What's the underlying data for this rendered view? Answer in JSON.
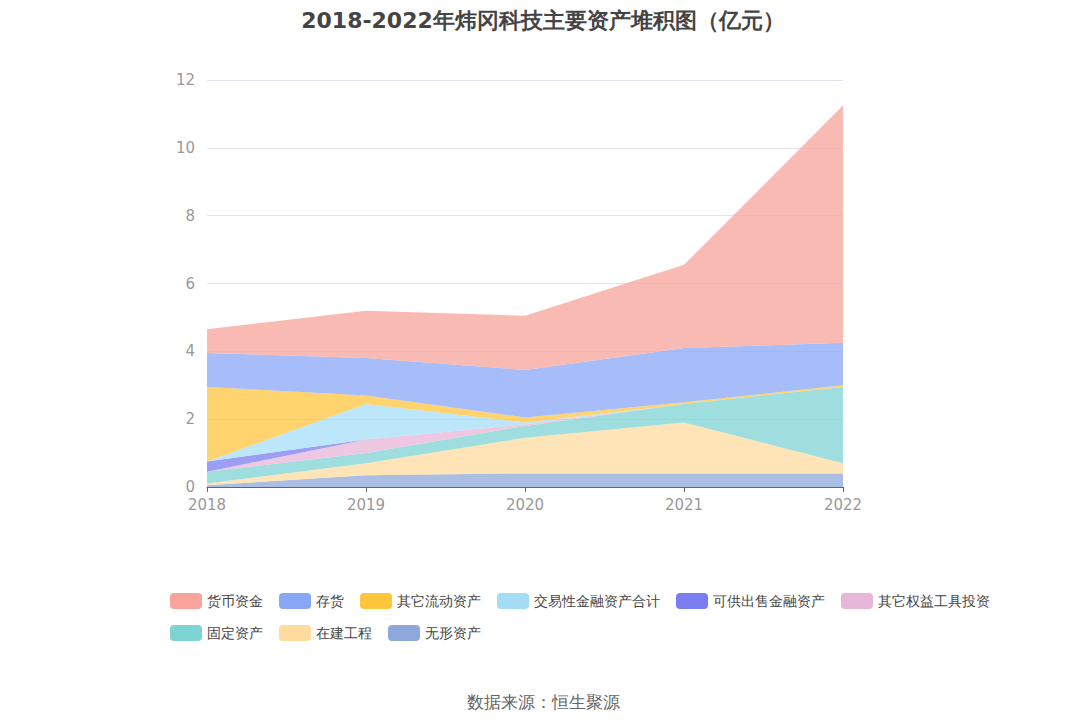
{
  "chart_data": {
    "type": "area",
    "title": "2018-2022年炜冈科技主要资产堆积图（亿元）",
    "annotations": [
      "数据来源：恒生聚源"
    ],
    "categories": [
      "2018",
      "2019",
      "2020",
      "2021",
      "2022"
    ],
    "stacked": true,
    "grid": true,
    "legend": "bottom",
    "ylim": [
      0,
      12
    ],
    "yticks": [
      0,
      2,
      4,
      6,
      8,
      10,
      12
    ],
    "series": [
      {
        "name": "货币资金",
        "color": "#f8a39b",
        "values": [
          0.7,
          1.4,
          1.6,
          2.45,
          7.0
        ]
      },
      {
        "name": "存货",
        "color": "#89a7f7",
        "values": [
          1.0,
          1.1,
          1.4,
          1.6,
          1.25
        ]
      },
      {
        "name": "其它流动资产",
        "color": "#ffc53d",
        "values": [
          2.2,
          0.25,
          0.15,
          0.05,
          0.05
        ]
      },
      {
        "name": "交易性金融资产合计",
        "color": "#a5ddf7",
        "values": [
          0,
          1.05,
          0.05,
          0,
          0
        ]
      },
      {
        "name": "可供出售金融资产",
        "color": "#7b7ef0",
        "values": [
          0.3,
          0,
          0,
          0,
          0
        ]
      },
      {
        "name": "其它权益工具投资",
        "color": "#e8b6d8",
        "values": [
          0,
          0.4,
          0.05,
          0,
          0
        ]
      },
      {
        "name": "固定资产",
        "color": "#7ed3d3",
        "values": [
          0.35,
          0.3,
          0.35,
          0.55,
          2.25
        ]
      },
      {
        "name": "在建工程",
        "color": "#ffdb9f",
        "values": [
          0.05,
          0.35,
          1.05,
          1.5,
          0.3
        ]
      },
      {
        "name": "无形资产",
        "color": "#8ea8db",
        "values": [
          0.05,
          0.35,
          0.4,
          0.4,
          0.4
        ]
      }
    ]
  }
}
